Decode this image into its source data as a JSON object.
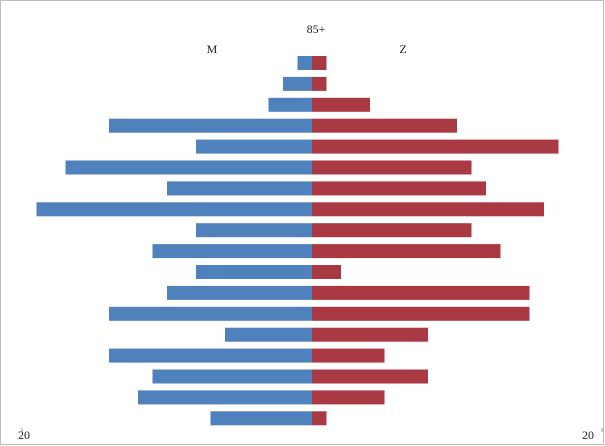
{
  "chart_data": {
    "type": "pyramid",
    "categories": [
      "85+",
      null,
      null,
      null,
      null,
      null,
      null,
      null,
      null,
      null,
      null,
      null,
      null,
      null,
      null,
      null,
      null,
      null
    ],
    "series": [
      {
        "name": "M",
        "color": "#4f81bd",
        "values": [
          -1,
          -2,
          -3,
          -14,
          -8,
          -17,
          -10,
          -19,
          -8,
          -11,
          -8,
          -10,
          -14,
          -6,
          -14,
          -11,
          -12,
          -7
        ]
      },
      {
        "name": "Z",
        "color": "#a93a44",
        "values": [
          1,
          1,
          4,
          10,
          17,
          11,
          12,
          16,
          11,
          13,
          2,
          15,
          15,
          8,
          5,
          8,
          5,
          1
        ]
      }
    ],
    "xlim": [
      -20,
      20
    ],
    "xticks": [
      {
        "value": -20,
        "label": "20"
      },
      {
        "value": 20,
        "label": "20"
      }
    ]
  }
}
